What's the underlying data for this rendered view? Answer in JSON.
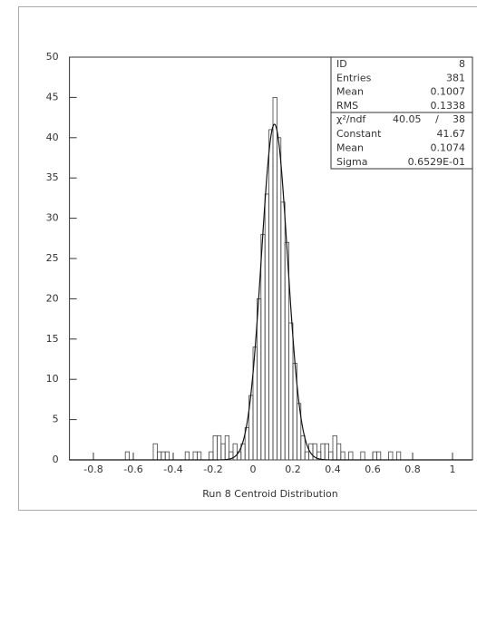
{
  "chart_data": {
    "type": "histogram",
    "xlabel": "Run 8 Centroid Distribution",
    "bins": [
      -0.92,
      -0.9,
      -0.88,
      -0.86,
      -0.84,
      -0.82,
      -0.8,
      -0.78,
      -0.76,
      -0.74,
      -0.72,
      -0.7,
      -0.68,
      -0.66,
      -0.64,
      -0.62,
      -0.6,
      -0.58,
      -0.56,
      -0.54,
      -0.52,
      -0.5,
      -0.48,
      -0.46,
      -0.44,
      -0.42,
      -0.4,
      -0.38,
      -0.36,
      -0.34,
      -0.32,
      -0.3,
      -0.28,
      -0.26,
      -0.24,
      -0.22,
      -0.2,
      -0.18,
      -0.16,
      -0.14,
      -0.12,
      -0.1,
      -0.08,
      -0.06,
      -0.04,
      -0.02,
      0,
      0.02,
      0.04,
      0.06,
      0.08,
      0.1,
      0.12,
      0.14,
      0.16,
      0.18,
      0.2,
      0.22,
      0.24,
      0.26,
      0.28,
      0.3,
      0.32,
      0.34,
      0.36,
      0.38,
      0.4,
      0.42,
      0.44,
      0.46,
      0.48,
      0.5,
      0.52,
      0.54,
      0.56,
      0.58,
      0.6,
      0.62,
      0.64,
      0.66,
      0.68,
      0.7,
      0.72,
      0.74,
      0.76,
      0.78,
      0.8,
      0.82,
      0.84,
      0.86,
      0.88,
      0.9,
      0.92,
      0.94,
      0.96,
      0.98,
      1,
      1.02,
      1.04,
      1.06,
      1.08,
      1.1
    ],
    "values": [
      0,
      0,
      0,
      0,
      0,
      0,
      0,
      0,
      0,
      0,
      0,
      0,
      0,
      0,
      1,
      0,
      0,
      0,
      0,
      0,
      0,
      2,
      1,
      1,
      1,
      0,
      0,
      0,
      0,
      1,
      0,
      1,
      1,
      0,
      0,
      1,
      3,
      3,
      2,
      3,
      1,
      2,
      1,
      2,
      4,
      8,
      14,
      20,
      28,
      33,
      41,
      45,
      40,
      32,
      27,
      17,
      12,
      7,
      3,
      1,
      2,
      2,
      1,
      2,
      2,
      1,
      3,
      2,
      1,
      0,
      1,
      0,
      0,
      1,
      0,
      0,
      1,
      1,
      0,
      0,
      1,
      0,
      1,
      0,
      0,
      0,
      0,
      0,
      0,
      0,
      0,
      0,
      0,
      0,
      0,
      0,
      0,
      0,
      0,
      0,
      0
    ],
    "color": "#444444",
    "xlim": [
      -0.92,
      1.1
    ],
    "ylim": [
      0,
      50
    ],
    "xticks": [
      -0.8,
      -0.6,
      -0.4,
      -0.2,
      0,
      0.2,
      0.4,
      0.6,
      0.8,
      1
    ],
    "yticks": [
      0,
      5,
      10,
      15,
      20,
      25,
      30,
      35,
      40,
      45,
      50
    ],
    "stats": [
      {
        "label": "ID",
        "value": "8"
      },
      {
        "label": "Entries",
        "value": "381"
      },
      {
        "label": "Mean",
        "value": "0.1007"
      },
      {
        "label": "RMS",
        "value": "0.1338"
      }
    ],
    "fit": {
      "chi2_label": "χ²/ndf",
      "chi2": "40.05",
      "separator": "/",
      "ndf": "38",
      "constant_label": "Constant",
      "constant": 41.67,
      "mean_label": "Mean",
      "mean": 0.1074,
      "sigma_label": "Sigma",
      "sigma": {
        "value": 0.06529,
        "label": "0.6529E-01"
      },
      "color": "#111111"
    }
  }
}
